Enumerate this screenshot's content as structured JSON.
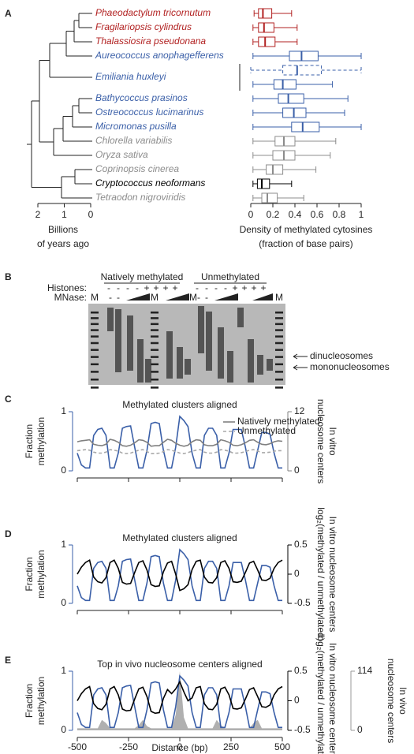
{
  "panel_labels": [
    "A",
    "B",
    "C",
    "D",
    "E"
  ],
  "tree": {
    "xlim": [
      2,
      0
    ],
    "xticks": [
      2,
      1,
      0
    ],
    "xlabel": [
      "Billions",
      "of years ago"
    ]
  },
  "gel": {
    "groups": [
      "Natively methylated",
      "Unmethylated"
    ],
    "row_labels": [
      "Histones:",
      "MNase:"
    ],
    "histones": [
      "-",
      "-",
      "-",
      "-",
      "+",
      "+",
      "+",
      "+",
      "-",
      "-",
      "-",
      "-",
      "+",
      "+",
      "+",
      "+"
    ],
    "mnase": [
      "-",
      "-",
      "-",
      "-"
    ],
    "markers": [
      "M",
      "M",
      "M",
      "M"
    ],
    "bands": [
      "dinucleosomes",
      "mononucleosomes"
    ]
  },
  "chart_data": [
    {
      "type": "box",
      "categories": [
        "Phaeodactylum tricornutum",
        "Fragilariopsis cylindrus",
        "Thalassiosira pseudonana",
        "Aureococcus anophagefferens",
        "Emiliania huxleyi",
        null,
        "Bathycoccus prasinos",
        "Ostreococcus lucimarinus",
        "Micromonas pusilla",
        "Chlorella variabilis",
        "Oryza sativa",
        "Coprinopsis cinerea",
        "Cryptococcus neoformans",
        "Tetraodon nigroviridis"
      ],
      "values": [
        [
          0.03,
          0.07,
          0.11,
          0.19,
          0.37
        ],
        [
          0.02,
          0.07,
          0.12,
          0.21,
          0.42
        ],
        [
          0.02,
          0.07,
          0.13,
          0.22,
          0.42
        ],
        [
          0.02,
          0.35,
          0.46,
          0.61,
          1.0
        ],
        [
          0.0,
          0.29,
          0.42,
          0.64,
          1.0
        ],
        [
          0.02,
          0.21,
          0.29,
          0.41,
          0.74
        ],
        [
          0.02,
          0.25,
          0.34,
          0.48,
          0.88
        ],
        [
          0.02,
          0.29,
          0.39,
          0.5,
          0.85
        ],
        [
          0.02,
          0.37,
          0.47,
          0.62,
          1.0
        ],
        [
          0.02,
          0.22,
          0.3,
          0.4,
          0.77
        ],
        [
          0.02,
          0.2,
          0.3,
          0.4,
          0.72
        ],
        [
          0.02,
          0.14,
          0.2,
          0.29,
          0.59
        ],
        [
          0.02,
          0.06,
          0.1,
          0.17,
          0.37
        ],
        [
          0.02,
          0.1,
          0.15,
          0.24,
          0.48
        ]
      ],
      "colors": [
        "#b22222",
        "#b22222",
        "#b22222",
        "#3a5fa8",
        "#3a5fa8",
        "#3a5fa8",
        "#3a5fa8",
        "#3a5fa8",
        "#3a5fa8",
        "#8c8c8c",
        "#8c8c8c",
        "#8c8c8c",
        "#000000",
        "#8c8c8c"
      ],
      "dashed": [
        false,
        false,
        false,
        false,
        true,
        false,
        false,
        false,
        false,
        false,
        false,
        false,
        false,
        false
      ],
      "xlim": [
        0,
        1
      ],
      "xticks": [
        0,
        0.2,
        0.4,
        0.6,
        0.8,
        1
      ],
      "xlabel": [
        "Density of methylated cytosines",
        "(fraction of base pairs)"
      ]
    },
    {
      "type": "line",
      "title": "Methylated clusters aligned",
      "x": [
        -500,
        -480,
        -460,
        -440,
        -420,
        -400,
        -380,
        -360,
        -340,
        -320,
        -300,
        -280,
        -260,
        -240,
        -220,
        -200,
        -180,
        -160,
        -140,
        -120,
        -100,
        -80,
        -60,
        -40,
        -20,
        0,
        20,
        40,
        60,
        80,
        100,
        120,
        140,
        160,
        180,
        200,
        220,
        240,
        260,
        280,
        300,
        320,
        340,
        360,
        380,
        400,
        420,
        440,
        460,
        480,
        500
      ],
      "xlim": [
        -500,
        500
      ],
      "xticks": [
        -500,
        -250,
        0,
        250,
        500
      ],
      "show_xtick_labels": false,
      "ylim": [
        0,
        1
      ],
      "yticks": [
        0,
        1
      ],
      "y2lim": [
        0,
        12
      ],
      "y2ticks": [
        0,
        12
      ],
      "ylabel": [
        "Fraction",
        "methylation"
      ],
      "y2label": [
        "In vitro",
        "nucleosome centers"
      ],
      "series": [
        {
          "color": "#3a5fa8",
          "values": [
            0.3,
            0.1,
            0.05,
            0.05,
            0.6,
            0.7,
            0.72,
            0.6,
            0.05,
            0.05,
            0.3,
            0.72,
            0.75,
            0.76,
            0.4,
            0.05,
            0.05,
            0.35,
            0.8,
            0.82,
            0.8,
            0.35,
            0.05,
            0.05,
            0.4,
            0.92,
            0.85,
            0.75,
            0.3,
            0.05,
            0.05,
            0.6,
            0.72,
            0.72,
            0.6,
            0.05,
            0.05,
            0.3,
            0.7,
            0.7,
            0.7,
            0.4,
            0.05,
            0.05,
            0.35,
            0.65,
            0.65,
            0.62,
            0.3,
            0.05,
            0.05
          ]
        },
        {
          "name": "Natively methylated",
          "color": "#808080",
          "axis": "y2",
          "values": [
            5.9,
            6.1,
            6.2,
            6.3,
            5.4,
            5.2,
            5.1,
            5.4,
            6.4,
            6.2,
            5.8,
            5.1,
            5.0,
            5.2,
            5.7,
            6.3,
            6.2,
            5.8,
            5.0,
            5.1,
            5.1,
            5.8,
            6.4,
            6.2,
            5.6,
            5.2,
            5.0,
            5.2,
            5.9,
            6.3,
            6.2,
            5.3,
            5.1,
            5.1,
            5.4,
            6.3,
            6.1,
            5.8,
            5.2,
            5.1,
            5.3,
            5.7,
            6.2,
            6.3,
            5.8,
            5.4,
            5.3,
            5.5,
            5.9,
            6.1,
            6.0
          ]
        },
        {
          "name": "Unmethylated",
          "color": "#a8a8a8",
          "dashed": true,
          "axis": "y2",
          "values": [
            4.1,
            4.2,
            4.3,
            4.2,
            3.8,
            3.6,
            3.6,
            3.8,
            4.3,
            4.2,
            4.0,
            3.6,
            3.5,
            3.6,
            3.9,
            4.2,
            4.3,
            3.9,
            3.5,
            3.5,
            3.6,
            3.9,
            4.3,
            4.2,
            3.9,
            3.6,
            3.5,
            3.7,
            4.0,
            4.2,
            4.3,
            3.8,
            3.6,
            3.6,
            3.8,
            4.3,
            4.2,
            4.0,
            3.6,
            3.6,
            3.7,
            3.9,
            4.2,
            4.3,
            4.0,
            3.7,
            3.7,
            3.8,
            4.0,
            4.1,
            4.1
          ]
        }
      ]
    },
    {
      "type": "line",
      "title": "Methylated clusters aligned",
      "x": [
        -500,
        -480,
        -460,
        -440,
        -420,
        -400,
        -380,
        -360,
        -340,
        -320,
        -300,
        -280,
        -260,
        -240,
        -220,
        -200,
        -180,
        -160,
        -140,
        -120,
        -100,
        -80,
        -60,
        -40,
        -20,
        0,
        20,
        40,
        60,
        80,
        100,
        120,
        140,
        160,
        180,
        200,
        220,
        240,
        260,
        280,
        300,
        320,
        340,
        360,
        380,
        400,
        420,
        440,
        460,
        480,
        500
      ],
      "xlim": [
        -500,
        500
      ],
      "xticks": [
        -500,
        -250,
        0,
        250,
        500
      ],
      "show_xtick_labels": false,
      "ylim": [
        0,
        1
      ],
      "yticks": [
        0,
        1
      ],
      "y2lim": [
        -0.5,
        0.5
      ],
      "y2ticks": [
        -0.5,
        0,
        0.5
      ],
      "ylabel": [
        "Fraction",
        "methylation"
      ],
      "y2label": [
        "In vitro nucleosome centers",
        "log₂(methylated / unmethylated)"
      ],
      "series": [
        {
          "color": "#3a5fa8",
          "values": [
            0.3,
            0.1,
            0.05,
            0.05,
            0.6,
            0.7,
            0.72,
            0.6,
            0.05,
            0.05,
            0.3,
            0.72,
            0.75,
            0.76,
            0.4,
            0.05,
            0.05,
            0.35,
            0.8,
            0.82,
            0.8,
            0.35,
            0.05,
            0.05,
            0.4,
            0.92,
            0.85,
            0.75,
            0.3,
            0.05,
            0.05,
            0.6,
            0.72,
            0.72,
            0.6,
            0.05,
            0.05,
            0.3,
            0.7,
            0.7,
            0.7,
            0.4,
            0.05,
            0.05,
            0.35,
            0.65,
            0.65,
            0.62,
            0.3,
            0.05,
            0.05
          ]
        },
        {
          "color": "#000000",
          "axis": "y2",
          "values": [
            0.0,
            0.12,
            0.2,
            0.24,
            -0.05,
            -0.13,
            -0.15,
            -0.06,
            0.2,
            0.24,
            0.1,
            -0.14,
            -0.17,
            -0.16,
            0.03,
            0.2,
            0.23,
            0.07,
            -0.18,
            -0.21,
            -0.2,
            0.04,
            0.19,
            0.22,
            0.0,
            -0.28,
            -0.25,
            -0.18,
            0.08,
            0.22,
            0.24,
            -0.05,
            -0.14,
            -0.15,
            -0.06,
            0.2,
            0.23,
            0.1,
            -0.13,
            -0.14,
            -0.12,
            0.03,
            0.19,
            0.22,
            0.07,
            -0.1,
            -0.11,
            -0.07,
            0.1,
            0.2,
            0.24
          ]
        }
      ]
    },
    {
      "type": "line",
      "title": "Top in vivo nucleosome centers aligned",
      "x": [
        -500,
        -480,
        -460,
        -440,
        -420,
        -400,
        -380,
        -360,
        -340,
        -320,
        -300,
        -280,
        -260,
        -240,
        -220,
        -200,
        -180,
        -160,
        -140,
        -120,
        -100,
        -80,
        -60,
        -40,
        -20,
        0,
        20,
        40,
        60,
        80,
        100,
        120,
        140,
        160,
        180,
        200,
        220,
        240,
        260,
        280,
        300,
        320,
        340,
        360,
        380,
        400,
        420,
        440,
        460,
        480,
        500
      ],
      "xlim": [
        -500,
        500
      ],
      "xticks": [
        -500,
        -250,
        0,
        250,
        500
      ],
      "show_xtick_labels": true,
      "xlabel": "Distance (bp)",
      "ylim": [
        0,
        1
      ],
      "yticks": [
        0,
        1
      ],
      "y2lim": [
        -0.5,
        0.5
      ],
      "y2ticks": [
        -0.5,
        0,
        0.5
      ],
      "y3lim": [
        0,
        114
      ],
      "y3ticks": [
        0,
        114
      ],
      "ylabel": [
        "Fraction",
        "methylation"
      ],
      "y2label": [
        "In vitro nucleosome centers",
        "log₂(methylated / unmethylated)"
      ],
      "y3label": [
        "In vivo",
        "nucleosome centers"
      ],
      "series": [
        {
          "color": "#b0b0b0",
          "axis": "y3",
          "area": true,
          "values": [
            4,
            4,
            4,
            4,
            4,
            4,
            20,
            14,
            4,
            4,
            4,
            4,
            4,
            4,
            4,
            10,
            20,
            8,
            4,
            4,
            4,
            4,
            4,
            4,
            30,
            114,
            25,
            4,
            4,
            4,
            4,
            4,
            4,
            4,
            20,
            10,
            4,
            4,
            4,
            4,
            4,
            4,
            4,
            14,
            20,
            4,
            4,
            4,
            4,
            4,
            4
          ]
        },
        {
          "color": "#3a5fa8",
          "values": [
            0.3,
            0.1,
            0.05,
            0.05,
            0.6,
            0.7,
            0.72,
            0.6,
            0.05,
            0.05,
            0.3,
            0.72,
            0.75,
            0.76,
            0.4,
            0.05,
            0.05,
            0.35,
            0.8,
            0.82,
            0.8,
            0.35,
            0.05,
            0.05,
            0.4,
            0.92,
            0.85,
            0.75,
            0.3,
            0.05,
            0.05,
            0.6,
            0.72,
            0.72,
            0.6,
            0.05,
            0.05,
            0.3,
            0.7,
            0.7,
            0.7,
            0.4,
            0.05,
            0.05,
            0.35,
            0.65,
            0.65,
            0.62,
            0.3,
            0.05,
            0.05
          ]
        },
        {
          "color": "#000000",
          "axis": "y2",
          "values": [
            0.0,
            0.12,
            0.2,
            0.24,
            -0.05,
            -0.13,
            -0.15,
            -0.06,
            0.2,
            0.24,
            0.1,
            -0.14,
            -0.17,
            -0.16,
            0.03,
            0.2,
            0.23,
            0.07,
            -0.18,
            -0.21,
            -0.2,
            0.04,
            0.19,
            0.12,
            0.2,
            0.32,
            0.15,
            0.0,
            0.05,
            0.22,
            0.24,
            -0.05,
            -0.14,
            -0.15,
            -0.06,
            0.2,
            0.23,
            0.1,
            -0.13,
            -0.14,
            -0.12,
            0.03,
            0.19,
            0.22,
            0.07,
            -0.1,
            -0.11,
            -0.07,
            0.1,
            0.2,
            0.24
          ]
        }
      ]
    }
  ]
}
